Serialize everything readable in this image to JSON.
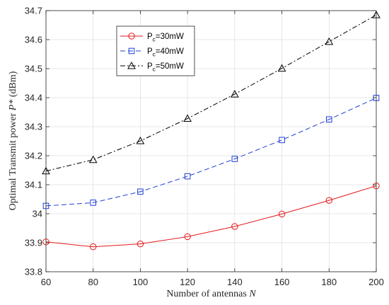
{
  "chart_data": {
    "type": "line",
    "xlabel": "Number of antennas",
    "xlabel_var": "N",
    "ylabel": "Optimal Transmit power",
    "ylabel_var": "P*",
    "ylabel_unit": "(dBm)",
    "x": [
      60,
      80,
      100,
      120,
      140,
      160,
      180,
      200
    ],
    "xlim": [
      60,
      200
    ],
    "ylim": [
      33.8,
      34.7
    ],
    "x_ticks": [
      "60",
      "80",
      "100",
      "120",
      "140",
      "160",
      "180",
      "200"
    ],
    "y_ticks": [
      "33.8",
      "33.9",
      "34",
      "34.1",
      "34.2",
      "34.3",
      "34.4",
      "34.5",
      "34.6",
      "34.7"
    ],
    "grid": true,
    "legend_position": "top-left",
    "series": [
      {
        "name": "Pc=30mW",
        "legend_main": "P",
        "legend_sub": "c",
        "legend_rest": "=30mW",
        "values": [
          33.903,
          33.886,
          33.896,
          33.921,
          33.956,
          33.999,
          34.046,
          34.096
        ],
        "color": "#e31a1c",
        "dash": "solid",
        "marker": "circle"
      },
      {
        "name": "Pc=40mW",
        "legend_main": "P",
        "legend_sub": "c",
        "legend_rest": "=40mW",
        "values": [
          34.027,
          34.038,
          34.076,
          34.129,
          34.189,
          34.254,
          34.325,
          34.399
        ],
        "color": "#1f3fd6",
        "dash": "dashed",
        "marker": "square"
      },
      {
        "name": "Pc=50mW",
        "legend_main": "P",
        "legend_sub": "c",
        "legend_rest": "=50mW",
        "values": [
          34.147,
          34.186,
          34.251,
          34.328,
          34.412,
          34.501,
          34.593,
          34.685
        ],
        "color": "#000000",
        "dash": "dashdot",
        "marker": "triangle"
      }
    ]
  }
}
